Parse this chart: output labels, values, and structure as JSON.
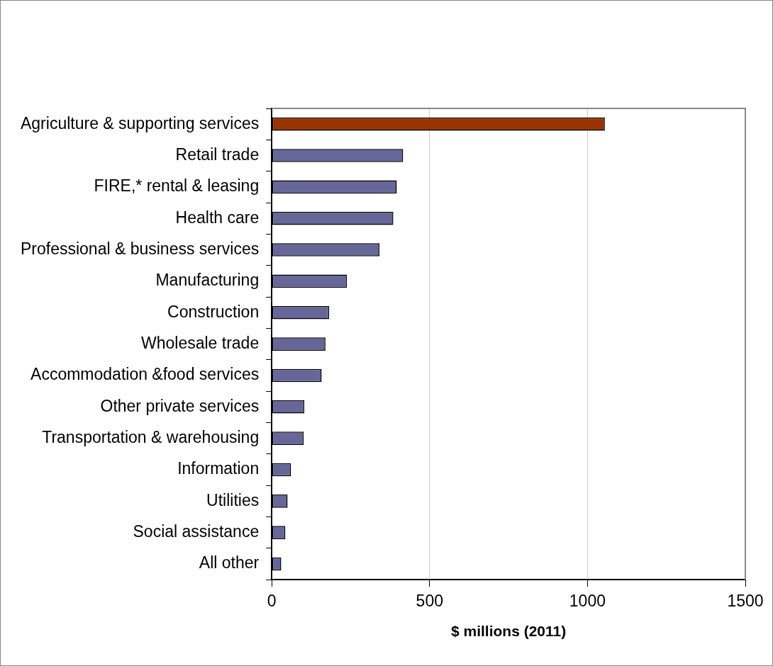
{
  "chart_data": {
    "type": "bar",
    "orientation": "horizontal",
    "xlabel": "$ millions (2011)",
    "categories": [
      "Agriculture & supporting services",
      "Retail trade",
      "FIRE,* rental & leasing",
      "Health care",
      "Professional & business services",
      "Manufacturing",
      "Construction",
      "Wholesale trade",
      "Accommodation &food services",
      "Other private services",
      "Transportation & warehousing",
      "Information",
      "Utilities",
      "Social assistance",
      "All other"
    ],
    "values": [
      1055,
      416,
      396,
      385,
      341,
      238,
      182,
      170,
      158,
      103,
      101,
      61,
      50,
      43,
      30
    ],
    "colors": [
      "#993300",
      "#666699",
      "#666699",
      "#666699",
      "#666699",
      "#666699",
      "#666699",
      "#666699",
      "#666699",
      "#666699",
      "#666699",
      "#666699",
      "#666699",
      "#666699",
      "#666699"
    ],
    "xlim": [
      0,
      1500
    ],
    "xticks": [
      0,
      500,
      1000,
      1500
    ],
    "grid": "x",
    "legend": false
  }
}
